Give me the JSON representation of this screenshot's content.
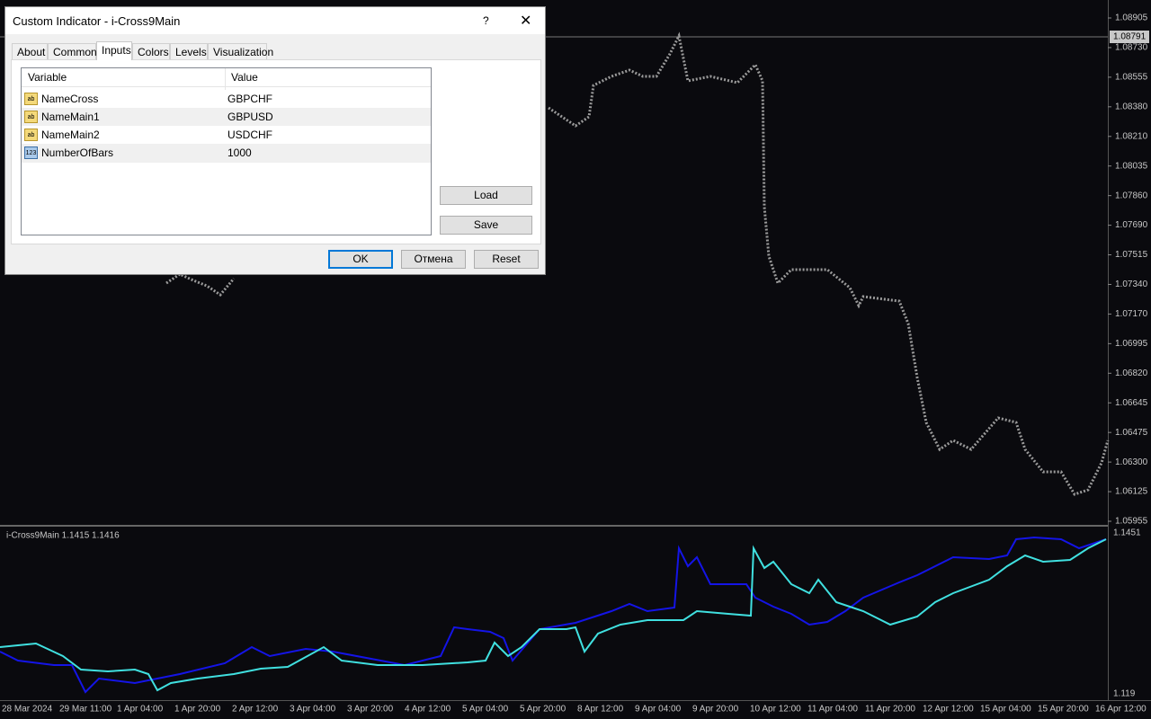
{
  "chart": {
    "current_price": "1.08791",
    "price_labels": [
      "1.08905",
      "1.08730",
      "1.08555",
      "1.08380",
      "1.08210",
      "1.08035",
      "1.07860",
      "1.07690",
      "1.07515",
      "1.07340",
      "1.07170",
      "1.06995",
      "1.06820",
      "1.06645",
      "1.06475",
      "1.06300",
      "1.06125",
      "1.05955"
    ],
    "indicator_label": "i-Cross9Main 1.1415 1.1416",
    "indicator_labels": [
      "1.1451",
      "1.119"
    ],
    "time_labels": [
      "28 Mar 2024",
      "29 Mar 11:00",
      "1 Apr 04:00",
      "1 Apr 20:00",
      "2 Apr 12:00",
      "3 Apr 04:00",
      "3 Apr 20:00",
      "4 Apr 12:00",
      "5 Apr 04:00",
      "5 Apr 20:00",
      "8 Apr 12:00",
      "9 Apr 04:00",
      "9 Apr 20:00",
      "10 Apr 12:00",
      "11 Apr 04:00",
      "11 Apr 20:00",
      "12 Apr 12:00",
      "15 Apr 04:00",
      "15 Apr 20:00",
      "16 Apr 12:00"
    ]
  },
  "dialog": {
    "title": "Custom Indicator - i-Cross9Main",
    "help": "?",
    "tabs": [
      "About",
      "Common",
      "Inputs",
      "Colors",
      "Levels",
      "Visualization"
    ],
    "table": {
      "header": [
        "Variable",
        "Value"
      ],
      "rows": [
        {
          "icon": "ab",
          "variable": "NameCross",
          "value": "GBPCHF"
        },
        {
          "icon": "ab",
          "variable": "NameMain1",
          "value": "GBPUSD"
        },
        {
          "icon": "ab",
          "variable": "NameMain2",
          "value": "USDCHF"
        },
        {
          "icon": "123",
          "variable": "NumberOfBars",
          "value": "1000"
        }
      ]
    },
    "side_buttons": [
      "Load",
      "Save"
    ],
    "buttons": [
      "OK",
      "Отмена",
      "Reset"
    ]
  }
}
